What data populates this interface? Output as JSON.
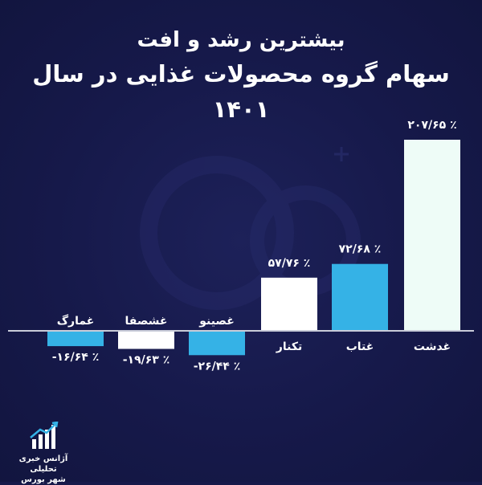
{
  "title": {
    "line1": "بیشترین رشد و افت",
    "line2": "سهام گروه محصولات غذایی در سال ۱۴۰۱"
  },
  "chart_data": {
    "type": "bar",
    "categories": [
      "غمارگ",
      "غشصفا",
      "غصینو",
      "تکنار",
      "غتاب",
      "غدشت"
    ],
    "values": [
      -16.64,
      -19.63,
      -26.44,
      57.76,
      72.68,
      207.65
    ],
    "data_labels": [
      "٪ ۱۶/۶۴-",
      "٪ ۱۹/۶۳-",
      "٪ ۲۶/۴۴-",
      "٪ ۵۷/۷۶",
      "٪ ۷۲/۶۸",
      "٪ ۲۰۷/۶۵"
    ],
    "bar_colors": [
      "#35b2e6",
      "#ffffff",
      "#35b2e6",
      "#ffffff",
      "#35b2e6",
      "#eefcf7"
    ],
    "baseline_color": "#c9ccd9",
    "label_color": "#ffffff",
    "grid": false,
    "legend": "none"
  },
  "logo": {
    "line1": "آژانس خبری تحلیلی",
    "line2": "شهر بورس",
    "icon": "bar-chart-arrow-icon"
  }
}
